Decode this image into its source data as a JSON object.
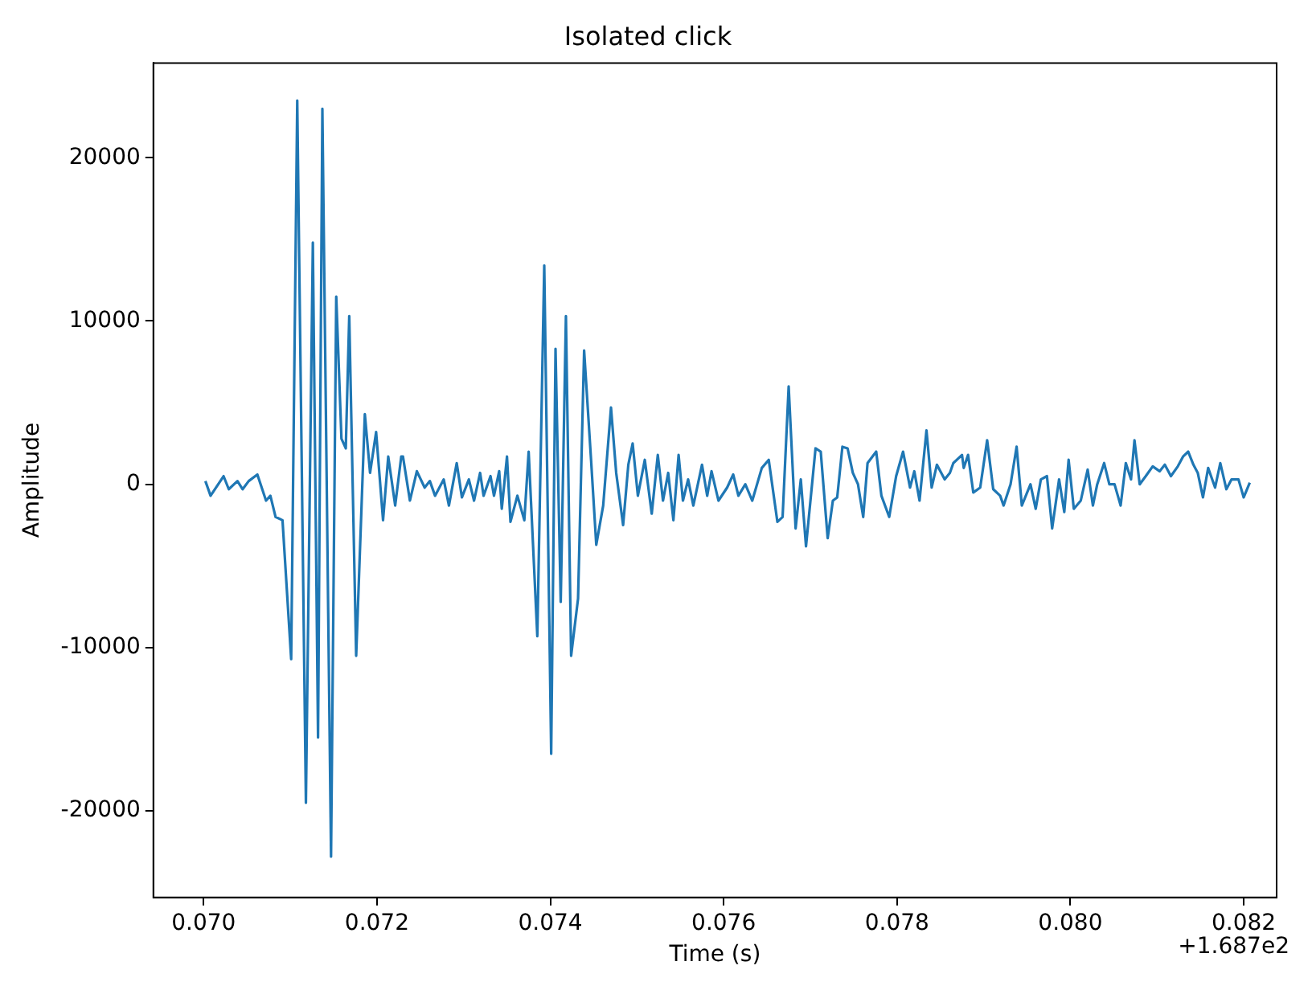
{
  "chart_data": {
    "type": "line",
    "title": "Isolated click",
    "xlabel": "Time (s)",
    "ylabel": "Amplitude",
    "annotations": [
      "+1.687e2"
    ],
    "grid": false,
    "legend": false,
    "marker": "none",
    "line_style": "solid",
    "xlim": [
      0.06942,
      0.08238
    ],
    "ylim": [
      -25300,
      25800
    ],
    "xticks": [
      {
        "value": 0.07,
        "label": "0.070"
      },
      {
        "value": 0.072,
        "label": "0.072"
      },
      {
        "value": 0.074,
        "label": "0.074"
      },
      {
        "value": 0.076,
        "label": "0.076"
      },
      {
        "value": 0.078,
        "label": "0.078"
      },
      {
        "value": 0.08,
        "label": "0.080"
      },
      {
        "value": 0.082,
        "label": "0.082"
      }
    ],
    "yticks": [
      -20000,
      -10000,
      0,
      10000,
      20000
    ],
    "series": [
      {
        "color": "#1f77b4",
        "x": [
          0.07002,
          0.07008,
          0.07023,
          0.07029,
          0.07039,
          0.07045,
          0.07052,
          0.07062,
          0.07072,
          0.07077,
          0.07083,
          0.07091,
          0.07101,
          0.07108,
          0.07118,
          0.07126,
          0.07132,
          0.07137,
          0.07147,
          0.07153,
          0.07159,
          0.07164,
          0.07168,
          0.07176,
          0.07186,
          0.07192,
          0.07199,
          0.07207,
          0.07213,
          0.07221,
          0.07228,
          0.0723,
          0.07238,
          0.07246,
          0.07255,
          0.07261,
          0.07267,
          0.07277,
          0.07283,
          0.07292,
          0.07298,
          0.07306,
          0.07312,
          0.07319,
          0.07323,
          0.07331,
          0.07335,
          0.07341,
          0.07344,
          0.0735,
          0.07354,
          0.07362,
          0.0737,
          0.07375,
          0.07385,
          0.07393,
          0.07401,
          0.07406,
          0.07412,
          0.07418,
          0.07424,
          0.07432,
          0.07439,
          0.07447,
          0.07453,
          0.07461,
          0.0747,
          0.07476,
          0.07484,
          0.0749,
          0.07495,
          0.07501,
          0.07509,
          0.07517,
          0.07524,
          0.0753,
          0.07536,
          0.07542,
          0.07548,
          0.07553,
          0.07559,
          0.07565,
          0.07575,
          0.07581,
          0.07586,
          0.07594,
          0.07604,
          0.07611,
          0.07617,
          0.07625,
          0.07633,
          0.07644,
          0.07652,
          0.07662,
          0.07668,
          0.07675,
          0.07683,
          0.07689,
          0.07695,
          0.07706,
          0.07712,
          0.0772,
          0.07726,
          0.07731,
          0.07737,
          0.07743,
          0.07749,
          0.07755,
          0.07761,
          0.07766,
          0.07776,
          0.07782,
          0.07791,
          0.07799,
          0.07807,
          0.07815,
          0.0782,
          0.07826,
          0.07834,
          0.0784,
          0.07846,
          0.07855,
          0.07861,
          0.07865,
          0.07875,
          0.07877,
          0.07882,
          0.07888,
          0.07896,
          0.07904,
          0.07911,
          0.07919,
          0.07923,
          0.07931,
          0.07938,
          0.07944,
          0.07954,
          0.0796,
          0.07966,
          0.07973,
          0.07979,
          0.07987,
          0.07993,
          0.07998,
          0.08004,
          0.08012,
          0.0802,
          0.08026,
          0.08031,
          0.08039,
          0.08045,
          0.08051,
          0.08058,
          0.08064,
          0.0807,
          0.08074,
          0.0808,
          0.08087,
          0.08095,
          0.08103,
          0.08109,
          0.08116,
          0.08124,
          0.0813,
          0.08136,
          0.08142,
          0.08147,
          0.08153,
          0.08159,
          0.08167,
          0.08173,
          0.0818,
          0.08186,
          0.08194,
          0.082,
          0.08207
        ],
        "values": [
          200,
          -700,
          500,
          -300,
          200,
          -300,
          200,
          600,
          -1000,
          -700,
          -2000,
          -2200,
          -10700,
          23500,
          -19500,
          14800,
          -15500,
          23000,
          -22800,
          11500,
          2800,
          2200,
          10300,
          -10500,
          4300,
          700,
          3200,
          -2200,
          1700,
          -1300,
          1700,
          1700,
          -1000,
          800,
          -200,
          200,
          -700,
          300,
          -1300,
          1300,
          -800,
          300,
          -1000,
          700,
          -700,
          500,
          -700,
          800,
          -1500,
          1700,
          -2300,
          -700,
          -2200,
          2000,
          -9300,
          13400,
          -16500,
          8300,
          -7200,
          10300,
          -10500,
          -7000,
          8200,
          1500,
          -3700,
          -1300,
          4700,
          700,
          -2500,
          1200,
          2500,
          -700,
          1500,
          -1800,
          1800,
          -1000,
          700,
          -2200,
          1800,
          -1000,
          300,
          -1300,
          1200,
          -700,
          800,
          -1000,
          -200,
          600,
          -700,
          0,
          -1000,
          1000,
          1500,
          -2300,
          -2000,
          6000,
          -2700,
          300,
          -3800,
          2200,
          2000,
          -3300,
          -1000,
          -800,
          2300,
          2200,
          700,
          0,
          -2000,
          1300,
          2000,
          -700,
          -2000,
          500,
          2000,
          -200,
          800,
          -1000,
          3300,
          -200,
          1200,
          300,
          700,
          1300,
          1800,
          1000,
          1800,
          -500,
          -200,
          2700,
          -300,
          -700,
          -1300,
          0,
          2300,
          -1300,
          0,
          -1500,
          300,
          500,
          -2700,
          300,
          -1700,
          1500,
          -1500,
          -1000,
          900,
          -1300,
          0,
          1300,
          0,
          0,
          -1300,
          1300,
          300,
          2700,
          0,
          500,
          1100,
          800,
          1200,
          500,
          1100,
          1700,
          2000,
          1200,
          700,
          -800,
          1000,
          -200,
          1300,
          -300,
          300,
          300,
          -800,
          100
        ]
      }
    ]
  }
}
